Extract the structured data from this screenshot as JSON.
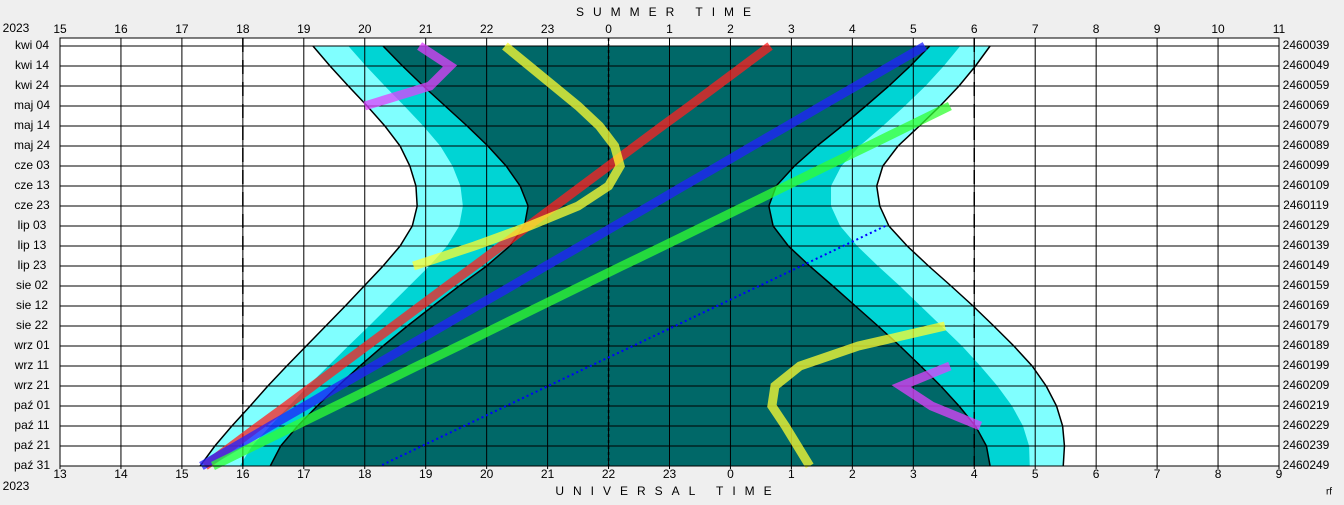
{
  "chart_data": {
    "type": "visibility",
    "title": "SUMMER TIME",
    "xlabel": "UNIVERSAL TIME",
    "year_top": "2023",
    "year_bottom": "2023",
    "credit": "rf",
    "categories": [
      "kwi 04",
      "kwi 14",
      "kwi 24",
      "maj 04",
      "maj 14",
      "maj 24",
      "cze 03",
      "cze 13",
      "cze 23",
      "lip 03",
      "lip 13",
      "lip 23",
      "sie 02",
      "sie 12",
      "sie 22",
      "wrz 01",
      "wrz 11",
      "wrz 21",
      "paź 01",
      "paź 11",
      "paź 21",
      "paź 31"
    ],
    "julian_days": [
      2460039,
      2460049,
      2460059,
      2460069,
      2460079,
      2460089,
      2460099,
      2460109,
      2460119,
      2460129,
      2460139,
      2460149,
      2460159,
      2460169,
      2460179,
      2460189,
      2460199,
      2460209,
      2460219,
      2460229,
      2460239,
      2460249
    ],
    "xlim": [
      15,
      35
    ],
    "xticks": [
      15,
      16,
      17,
      18,
      19,
      20,
      21,
      22,
      23,
      {
        "value": 24,
        "label": "0"
      },
      {
        "value": 25,
        "label": "1"
      },
      {
        "value": 26,
        "label": "2"
      },
      {
        "value": 27,
        "label": "3"
      },
      {
        "value": 28,
        "label": "4"
      },
      {
        "value": 29,
        "label": "5"
      },
      {
        "value": 30,
        "label": "6"
      },
      {
        "value": 31,
        "label": "7"
      },
      {
        "value": 32,
        "label": "8"
      },
      {
        "value": 33,
        "label": "9"
      },
      {
        "value": 34,
        "label": "10"
      },
      {
        "value": 35,
        "label": "11"
      }
    ],
    "x2lim": [
      13,
      33
    ],
    "x2ticks": [
      13,
      14,
      15,
      16,
      17,
      18,
      19,
      20,
      21,
      22,
      23,
      {
        "value": 24,
        "label": "0"
      },
      {
        "value": 25,
        "label": "1"
      },
      {
        "value": 26,
        "label": "2"
      },
      {
        "value": 27,
        "label": "3"
      },
      {
        "value": 28,
        "label": "4"
      },
      {
        "value": 29,
        "label": "5"
      },
      {
        "value": 30,
        "label": "6"
      },
      {
        "value": 31,
        "label": "7"
      },
      {
        "value": 32,
        "label": "8"
      },
      {
        "value": 33,
        "label": "9"
      }
    ],
    "reference_lines": [
      18,
      24,
      30
    ],
    "grid": true,
    "twilight": [
      {
        "color": "#80ffff",
        "start": [
          19.15,
          19.43,
          19.73,
          20.04,
          20.33,
          20.58,
          20.74,
          20.84,
          20.86,
          20.78,
          20.58,
          20.3,
          19.99,
          19.68,
          19.36,
          19.04,
          18.72,
          18.41,
          18.12,
          17.82,
          17.54,
          17.3
        ],
        "end": [
          30.26,
          30.02,
          29.75,
          29.44,
          29.1,
          28.75,
          28.5,
          28.4,
          28.45,
          28.6,
          28.9,
          29.25,
          29.62,
          29.98,
          30.32,
          30.65,
          30.95,
          31.18,
          31.35,
          31.45,
          31.48,
          31.46
        ]
      },
      {
        "color": "#00d4d4",
        "start": [
          19.73,
          20.02,
          20.33,
          20.65,
          20.96,
          21.24,
          21.44,
          21.57,
          21.61,
          21.55,
          21.35,
          21.06,
          20.73,
          20.4,
          20.07,
          19.73,
          19.4,
          19.07,
          18.76,
          18.45,
          18.15,
          17.95
        ],
        "end": [
          29.77,
          29.5,
          29.2,
          28.86,
          28.5,
          28.12,
          27.82,
          27.65,
          27.65,
          27.8,
          28.08,
          28.42,
          28.78,
          29.12,
          29.46,
          29.8,
          30.1,
          30.38,
          30.62,
          30.8,
          30.9,
          30.91
        ]
      },
      {
        "color": "#006868",
        "start": [
          20.3,
          20.62,
          20.96,
          21.32,
          21.68,
          22.02,
          22.32,
          22.55,
          22.68,
          22.62,
          22.38,
          22.0,
          21.55,
          21.12,
          20.7,
          20.3,
          19.92,
          19.56,
          19.22,
          18.9,
          18.62,
          18.45
        ],
        "end": [
          29.27,
          28.95,
          28.6,
          28.22,
          27.83,
          27.42,
          27.05,
          26.75,
          26.63,
          26.7,
          26.95,
          27.3,
          27.68,
          28.05,
          28.42,
          28.78,
          29.12,
          29.45,
          29.75,
          30.02,
          30.2,
          30.26
        ]
      }
    ],
    "series": [
      {
        "color": "#ff2020",
        "values": [
          26.65,
          26.21,
          25.77,
          25.33,
          24.88,
          24.44,
          24.0,
          23.56,
          23.12,
          22.68,
          22.24,
          21.8,
          21.35,
          20.91,
          20.47,
          20.03,
          19.59,
          19.15,
          18.71,
          18.26,
          17.82,
          17.38
        ]
      },
      {
        "color": "#2020ff",
        "values": [
          29.19,
          28.62,
          28.06,
          27.49,
          26.93,
          26.36,
          25.8,
          25.23,
          24.67,
          24.1,
          23.54,
          22.97,
          22.41,
          21.84,
          21.28,
          20.71,
          20.15,
          19.58,
          19.02,
          18.45,
          17.89,
          17.32
        ]
      },
      {
        "color": "#30ff30",
        "values": [
          null,
          null,
          null,
          29.6,
          28.93,
          28.26,
          27.58,
          26.91,
          26.24,
          25.57,
          24.9,
          24.22,
          23.55,
          22.88,
          22.21,
          21.54,
          20.86,
          20.19,
          19.52,
          18.85,
          18.18,
          17.51
        ]
      },
      {
        "color": "#0000ff",
        "values": [
          null,
          null,
          null,
          null,
          null,
          null,
          null,
          null,
          null,
          28.54,
          27.85,
          27.16,
          26.47,
          25.78,
          25.09,
          24.4,
          23.7,
          23.01,
          22.32,
          21.63,
          20.94,
          20.25
        ]
      },
      {
        "color": "#ffff30",
        "values": [
          22.3,
          22.7,
          23.1,
          23.5,
          23.85,
          24.1,
          24.19,
          24.0,
          23.5,
          22.7,
          21.8,
          20.8,
          null,
          null,
          null,
          null,
          null,
          null,
          null,
          null,
          null,
          null
        ]
      },
      {
        "color": "#ffff30",
        "values": [
          null,
          null,
          null,
          null,
          null,
          null,
          null,
          null,
          null,
          null,
          null,
          null,
          null,
          null,
          29.52,
          28.1,
          27.14,
          26.73,
          26.68,
          26.9,
          27.1,
          27.3
        ]
      },
      {
        "color": "#e040ff",
        "values": [
          20.9,
          21.4,
          21.07,
          20.0,
          null,
          null,
          null,
          null,
          null,
          null,
          null,
          null,
          null,
          null,
          null,
          null,
          null,
          null,
          null,
          null,
          null,
          null
        ]
      },
      {
        "color": "#e040ff",
        "values": [
          null,
          null,
          null,
          null,
          null,
          null,
          null,
          null,
          null,
          null,
          null,
          null,
          null,
          null,
          null,
          null,
          29.6,
          28.8,
          29.3,
          30.1,
          null,
          null
        ]
      }
    ]
  }
}
